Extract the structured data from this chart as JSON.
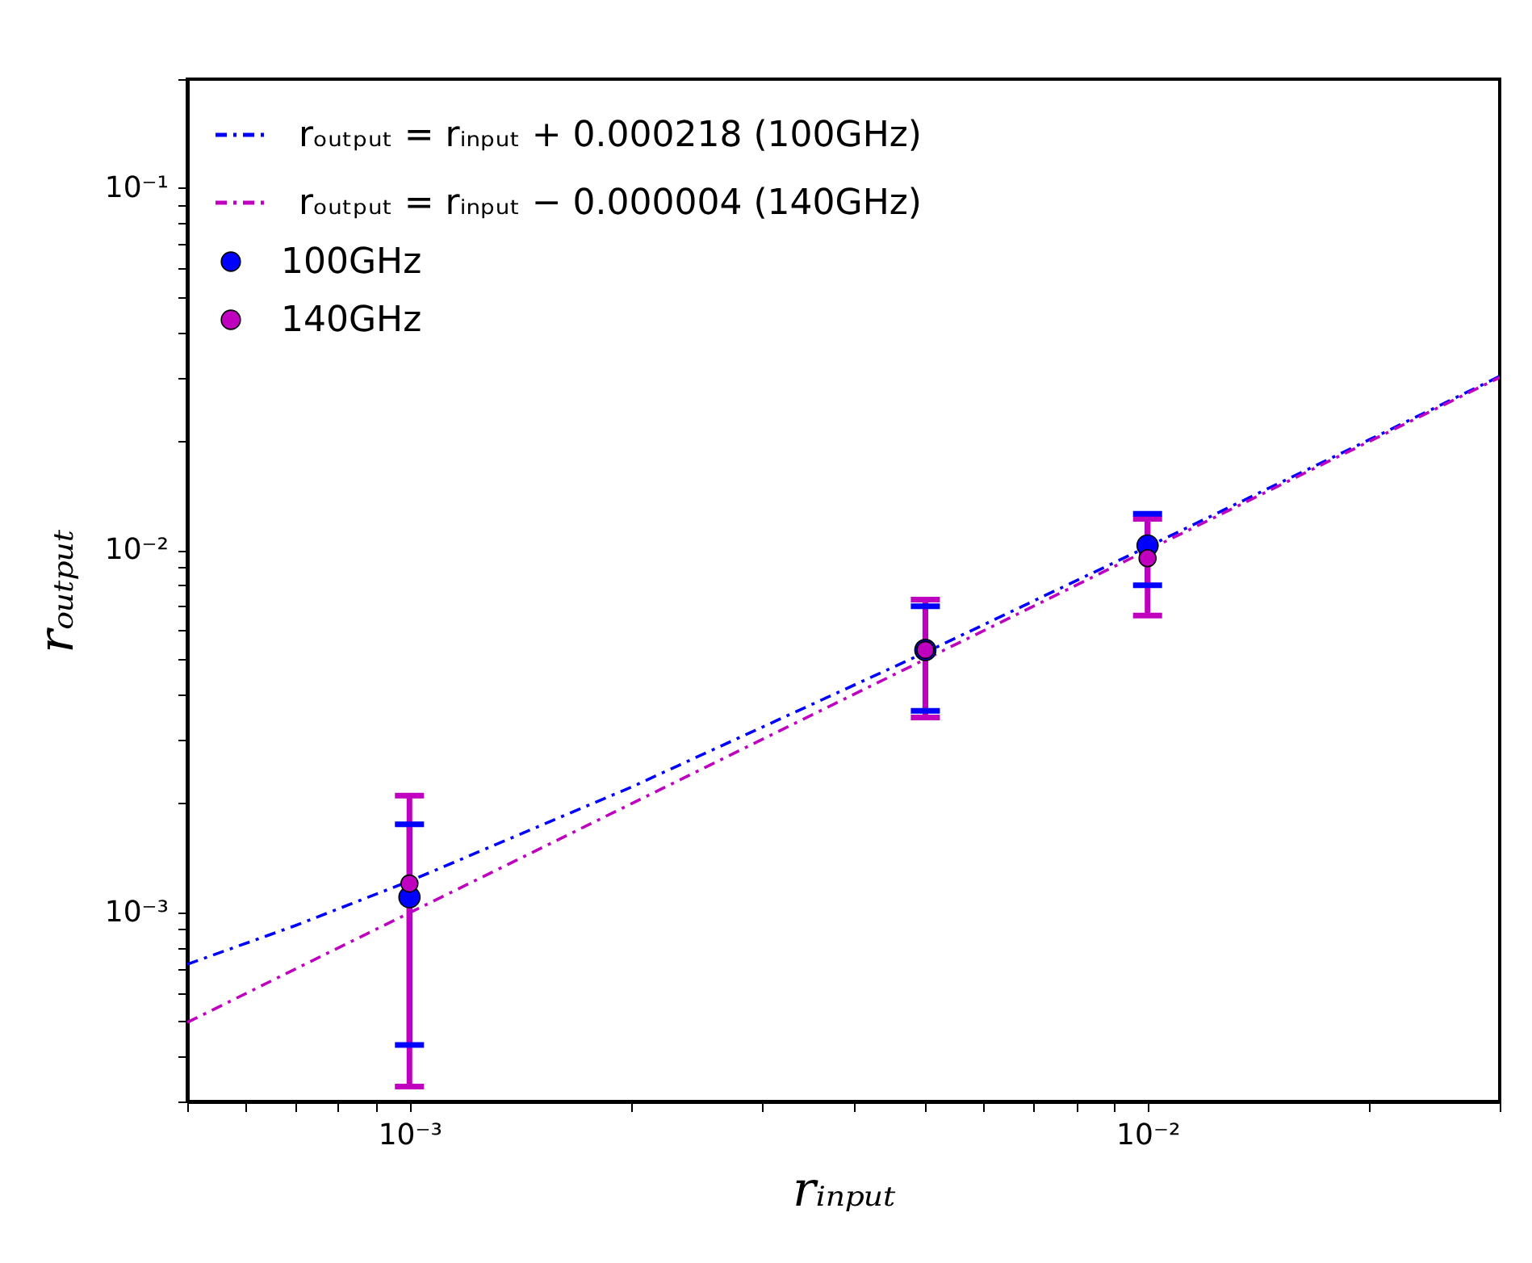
{
  "chart_data": {
    "type": "scatter",
    "xlabel": "rᵢₙₚᵤₜ",
    "ylabel": "rₒᵤₜₚᵤₜ",
    "log": "xy",
    "grid": false,
    "legend": "top left",
    "xlim": [
      0.0005,
      0.03
    ],
    "ylim": [
      0.0003,
      0.2
    ],
    "xticks": [
      {
        "value": 0.0005,
        "label": null
      },
      {
        "value": 0.0006,
        "label": null
      },
      {
        "value": 0.0007,
        "label": null
      },
      {
        "value": 0.0008,
        "label": null
      },
      {
        "value": 0.0009,
        "label": null
      },
      {
        "value": 0.001,
        "label": "10⁻³"
      },
      {
        "value": 0.002,
        "label": null
      },
      {
        "value": 0.003,
        "label": null
      },
      {
        "value": 0.004,
        "label": null
      },
      {
        "value": 0.005,
        "label": null
      },
      {
        "value": 0.006,
        "label": null
      },
      {
        "value": 0.007,
        "label": null
      },
      {
        "value": 0.008,
        "label": null
      },
      {
        "value": 0.009,
        "label": null
      },
      {
        "value": 0.01,
        "label": "10⁻²"
      },
      {
        "value": 0.02,
        "label": null
      },
      {
        "value": 0.03,
        "label": null
      }
    ],
    "yticks": [
      {
        "value": 0.0003,
        "label": null
      },
      {
        "value": 0.0004,
        "label": null
      },
      {
        "value": 0.0005,
        "label": null
      },
      {
        "value": 0.0006,
        "label": null
      },
      {
        "value": 0.0007,
        "label": null
      },
      {
        "value": 0.0008,
        "label": null
      },
      {
        "value": 0.0009,
        "label": null
      },
      {
        "value": 0.001,
        "label": "10⁻³"
      },
      {
        "value": 0.002,
        "label": null
      },
      {
        "value": 0.003,
        "label": null
      },
      {
        "value": 0.004,
        "label": null
      },
      {
        "value": 0.005,
        "label": null
      },
      {
        "value": 0.006,
        "label": null
      },
      {
        "value": 0.007,
        "label": null
      },
      {
        "value": 0.008,
        "label": null
      },
      {
        "value": 0.009,
        "label": null
      },
      {
        "value": 0.01,
        "label": "10⁻²"
      },
      {
        "value": 0.02,
        "label": null
      },
      {
        "value": 0.03,
        "label": null
      },
      {
        "value": 0.04,
        "label": null
      },
      {
        "value": 0.05,
        "label": null
      },
      {
        "value": 0.06,
        "label": null
      },
      {
        "value": 0.07,
        "label": null
      },
      {
        "value": 0.08,
        "label": null
      },
      {
        "value": 0.09,
        "label": null
      },
      {
        "value": 0.1,
        "label": "10⁻¹"
      },
      {
        "value": 0.2,
        "label": null
      }
    ],
    "series": [
      {
        "name": "rₒᵤₜₚᵤₜ = rᵢₙₚᵤₜ + 0.000218 (100GHz)",
        "type": "line",
        "line_style": "dashed",
        "color": "#0000ff",
        "x": [
          0.0005,
          0.0007,
          0.001,
          0.002,
          0.005,
          0.01,
          0.02,
          0.03
        ],
        "values": [
          0.000718,
          0.000918,
          0.001218,
          0.002218,
          0.005218,
          0.010218,
          0.020218,
          0.030218
        ]
      },
      {
        "name": "rₒᵤₜₚᵤₜ = rᵢₙₚᵤₜ − 0.000004 (140GHz)",
        "type": "line",
        "line_style": "dashed",
        "color": "#bf00bf",
        "x": [
          0.0005,
          0.0007,
          0.001,
          0.002,
          0.005,
          0.01,
          0.02,
          0.03
        ],
        "values": [
          0.000496,
          0.000696,
          0.000996,
          0.001996,
          0.004996,
          0.009996,
          0.019996,
          0.029996
        ]
      },
      {
        "name": "100GHz",
        "type": "scatter",
        "marker": "circle",
        "color": "#0000ff",
        "x": [
          0.001,
          0.005,
          0.01
        ],
        "values": [
          0.0011,
          0.0053,
          0.0103
        ],
        "errors": [
          [
            0.00043,
            0.00175
          ],
          [
            0.0036,
            0.007
          ],
          [
            0.008,
            0.0126
          ]
        ]
      },
      {
        "name": "140GHz",
        "type": "scatter",
        "marker": "circle",
        "color": "#bf00bf",
        "x": [
          0.001,
          0.005,
          0.01
        ],
        "values": [
          0.0012,
          0.0053,
          0.0095
        ],
        "errors": [
          [
            0.00033,
            0.0021
          ],
          [
            0.00345,
            0.0073
          ],
          [
            0.0066,
            0.0122
          ]
        ]
      }
    ]
  }
}
